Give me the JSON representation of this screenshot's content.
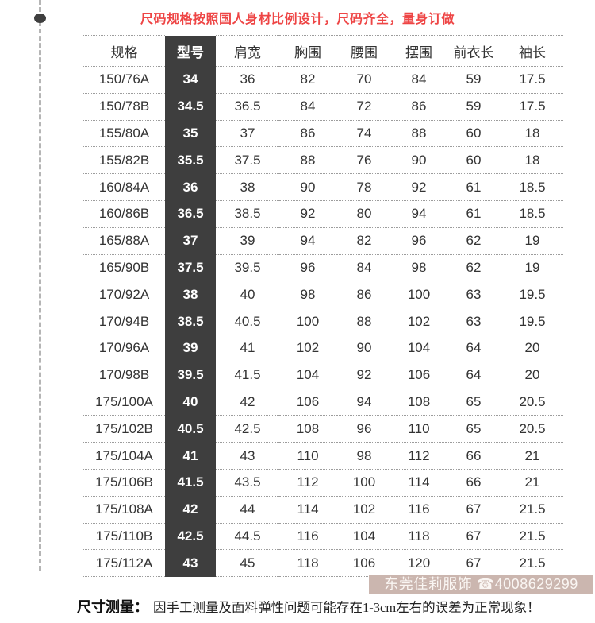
{
  "page": {
    "title": "尺码规格按照国人身材比例设计，尺码齐全，量身订做",
    "note": {
      "label": "尺寸测量：",
      "text": "因手工测量及面料弹性问题可能存在1-3cm左右的误差为正常现象！"
    },
    "watermark": {
      "brand": "东莞佳莉服饰",
      "phone_icon": "☎",
      "phone": "4008629299"
    }
  },
  "chart_data": {
    "type": "table",
    "title": "尺码规格按照国人身材比例设计，尺码齐全，量身订做",
    "columns": [
      "规格",
      "型号",
      "肩宽",
      "胸围",
      "腰围",
      "摆围",
      "前衣长",
      "袖长"
    ],
    "highlight_column": "型号",
    "rows": [
      [
        "150/76A",
        "34",
        "36",
        "82",
        "70",
        "84",
        "59",
        "17.5"
      ],
      [
        "150/78B",
        "34.5",
        "36.5",
        "84",
        "72",
        "86",
        "59",
        "17.5"
      ],
      [
        "155/80A",
        "35",
        "37",
        "86",
        "74",
        "88",
        "60",
        "18"
      ],
      [
        "155/82B",
        "35.5",
        "37.5",
        "88",
        "76",
        "90",
        "60",
        "18"
      ],
      [
        "160/84A",
        "36",
        "38",
        "90",
        "78",
        "92",
        "61",
        "18.5"
      ],
      [
        "160/86B",
        "36.5",
        "38.5",
        "92",
        "80",
        "94",
        "61",
        "18.5"
      ],
      [
        "165/88A",
        "37",
        "39",
        "94",
        "82",
        "96",
        "62",
        "19"
      ],
      [
        "165/90B",
        "37.5",
        "39.5",
        "96",
        "84",
        "98",
        "62",
        "19"
      ],
      [
        "170/92A",
        "38",
        "40",
        "98",
        "86",
        "100",
        "63",
        "19.5"
      ],
      [
        "170/94B",
        "38.5",
        "40.5",
        "100",
        "88",
        "102",
        "63",
        "19.5"
      ],
      [
        "170/96A",
        "39",
        "41",
        "102",
        "90",
        "104",
        "64",
        "20"
      ],
      [
        "170/98B",
        "39.5",
        "41.5",
        "104",
        "92",
        "106",
        "64",
        "20"
      ],
      [
        "175/100A",
        "40",
        "42",
        "106",
        "94",
        "108",
        "65",
        "20.5"
      ],
      [
        "175/102B",
        "40.5",
        "42.5",
        "108",
        "96",
        "110",
        "65",
        "20.5"
      ],
      [
        "175/104A",
        "41",
        "43",
        "110",
        "98",
        "112",
        "66",
        "21"
      ],
      [
        "175/106B",
        "41.5",
        "43.5",
        "112",
        "100",
        "114",
        "66",
        "21"
      ],
      [
        "175/108A",
        "42",
        "44",
        "114",
        "102",
        "116",
        "67",
        "21.5"
      ],
      [
        "175/110B",
        "42.5",
        "44.5",
        "116",
        "104",
        "118",
        "67",
        "21.5"
      ],
      [
        "175/112A",
        "43",
        "45",
        "118",
        "106",
        "120",
        "67",
        "21.5"
      ]
    ]
  },
  "colors": {
    "accent_red": "#ee4545",
    "model_column_bg": "#3e3e3e",
    "watermark_bg": "#cbb6af",
    "watermark_text": "#faf6f3",
    "table_text": "#333333",
    "dotted_border": "#9c9c9c"
  }
}
